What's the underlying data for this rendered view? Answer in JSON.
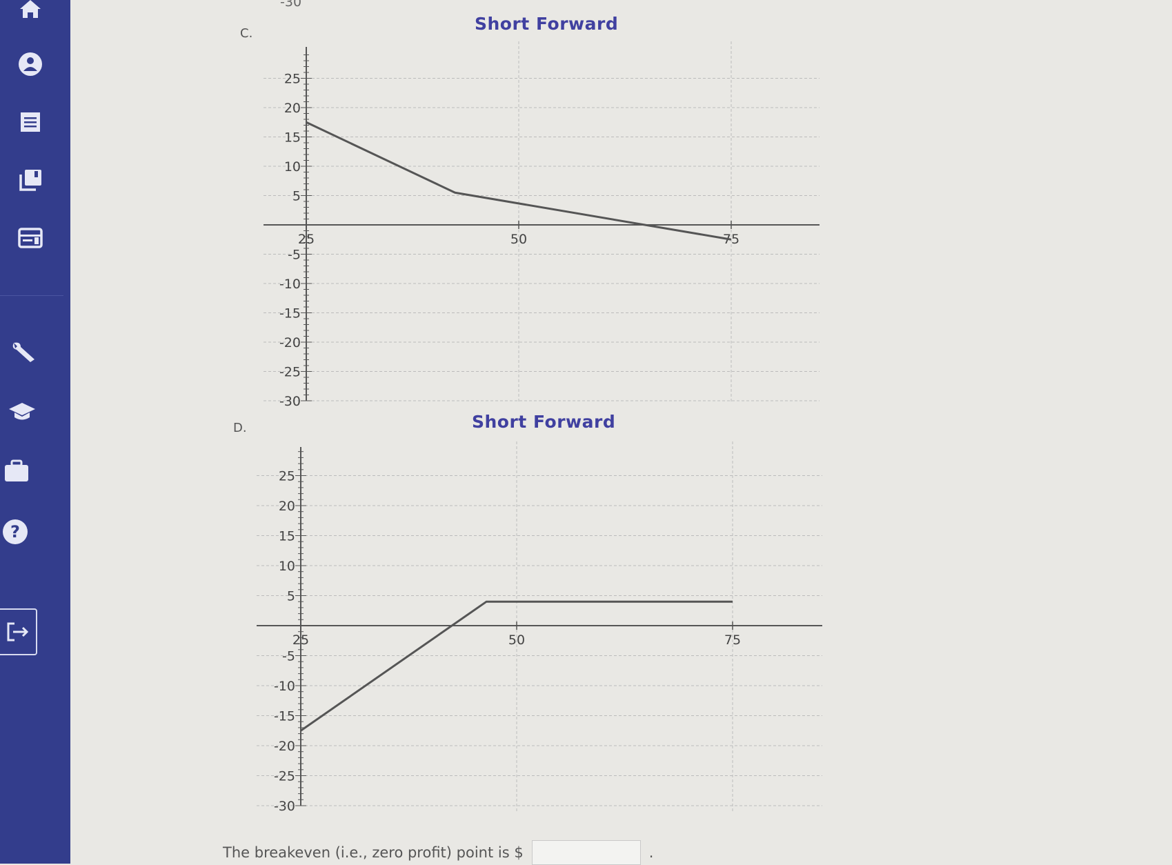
{
  "sidebar": {
    "items": [
      {
        "icon": "home-icon"
      },
      {
        "icon": "user-icon"
      },
      {
        "icon": "document-list-icon"
      },
      {
        "icon": "books-icon"
      },
      {
        "icon": "calendar-card-icon"
      },
      {
        "icon": "wrench-icon"
      },
      {
        "icon": "graduation-cap-icon"
      },
      {
        "icon": "briefcase-icon"
      },
      {
        "icon": "help-icon"
      }
    ],
    "exit_icon": "sign-out-icon",
    "color": "#333d8c"
  },
  "top_fragment": "-30",
  "question": {
    "text": "The breakeven (i.e., zero profit) point is $",
    "answer_value": "",
    "suffix": "."
  },
  "chart_data": [
    {
      "option": "C.",
      "type": "line",
      "title": "Short Forward",
      "x_ticks": [
        25,
        50,
        75
      ],
      "y_ticks": [
        25,
        20,
        15,
        10,
        5,
        -5,
        -10,
        -15,
        -20,
        -25,
        -30
      ],
      "xlim": [
        20,
        80
      ],
      "ylim": [
        -30,
        29
      ],
      "grid": true,
      "line_color": "#555555",
      "series": [
        {
          "x": [
            25,
            42.5,
            75
          ],
          "y": [
            17.5,
            5.5,
            -2.5
          ]
        }
      ]
    },
    {
      "option": "D.",
      "type": "line",
      "title": "Short Forward",
      "x_ticks": [
        25,
        50,
        75
      ],
      "y_ticks": [
        25,
        20,
        15,
        10,
        5,
        -5,
        -10,
        -15,
        -20,
        -25,
        -30
      ],
      "xlim": [
        20,
        85
      ],
      "ylim": [
        -30,
        29
      ],
      "grid": true,
      "line_color": "#555555",
      "series": [
        {
          "x": [
            25,
            46.5,
            75
          ],
          "y": [
            -17.5,
            4,
            4
          ]
        }
      ]
    }
  ]
}
